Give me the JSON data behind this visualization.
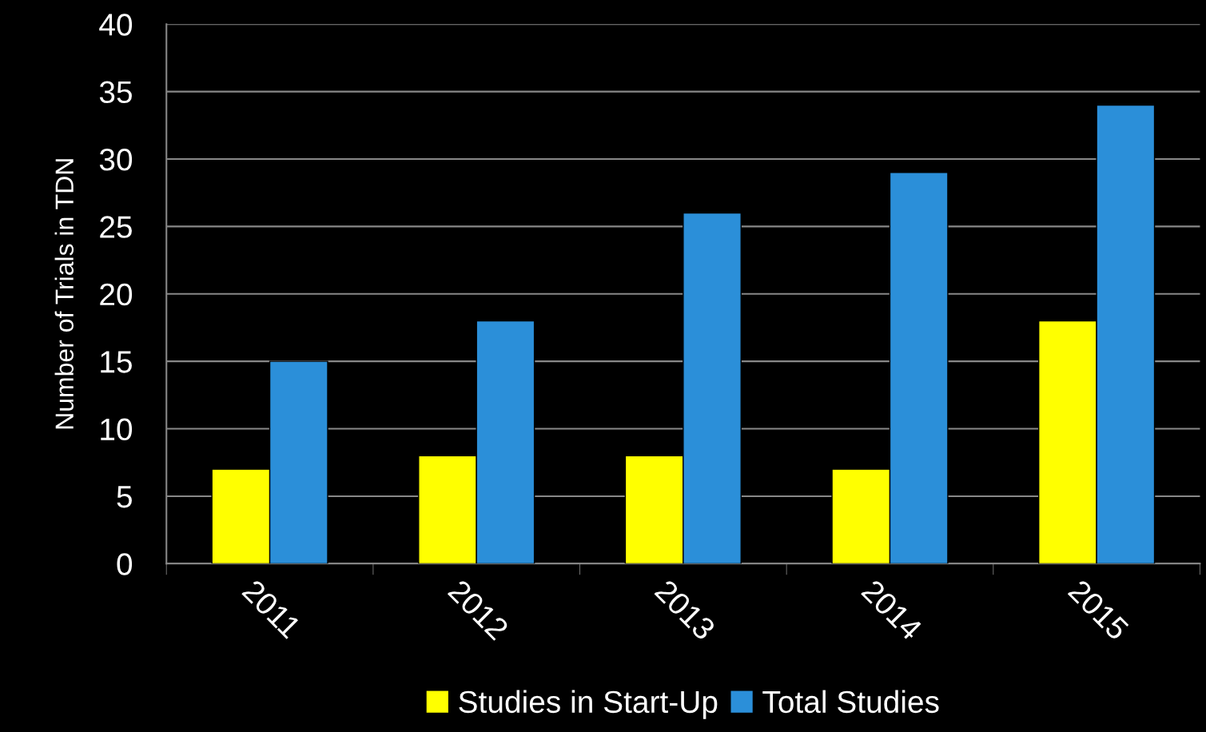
{
  "chart_data": {
    "type": "bar",
    "ylabel": "Number of Trials in TDN",
    "categories": [
      "2011",
      "2012",
      "2013",
      "2014",
      "2015"
    ],
    "series": [
      {
        "name": "Studies in Start-Up",
        "color": "#ffff00",
        "values": [
          7,
          8,
          8,
          7,
          18
        ]
      },
      {
        "name": "Total Studies",
        "color": "#2b8fd9",
        "values": [
          15,
          18,
          26,
          29,
          34
        ]
      }
    ],
    "ylim": [
      0,
      40
    ],
    "yticks": [
      0,
      5,
      10,
      15,
      20,
      25,
      30,
      35,
      40
    ],
    "grid": "y",
    "legend": "bottom"
  }
}
